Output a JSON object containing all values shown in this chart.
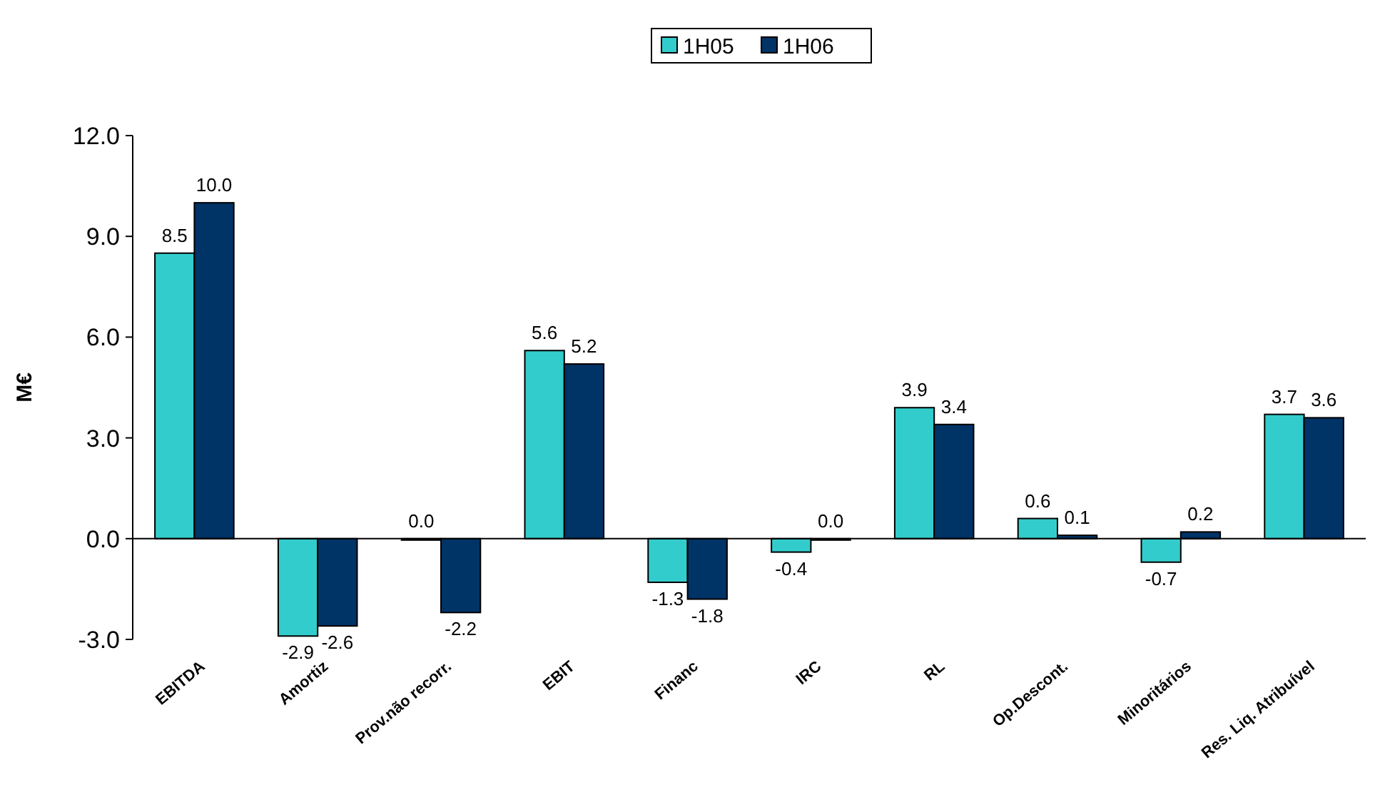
{
  "chart_data": {
    "type": "bar",
    "ylabel": "M€",
    "categories": [
      "EBITDA",
      "Amortiz",
      "Prov.não recorr.",
      "EBIT",
      "Financ",
      "IRC",
      "RL",
      "Op.Descont.",
      "Minoritários",
      "Res. Liq. Atribuível"
    ],
    "series": [
      {
        "name": "1H05",
        "color": "#33cccc",
        "values": [
          8.5,
          -2.9,
          0.0,
          5.6,
          -1.3,
          -0.4,
          3.9,
          0.6,
          -0.7,
          3.7
        ],
        "value_labels": [
          "8.5",
          "-2.9",
          "0.0",
          "5.6",
          "-1.3",
          "-0.4",
          "3.9",
          "0.6",
          "-0.7",
          "3.7"
        ]
      },
      {
        "name": "1H06",
        "color": "#003366",
        "values": [
          10.0,
          -2.6,
          -2.2,
          5.2,
          -1.8,
          0.0,
          3.4,
          0.1,
          0.2,
          3.6
        ],
        "value_labels": [
          "10.0",
          "-2.6",
          "-2.2",
          "5.2",
          "-1.8",
          "0.0",
          "3.4",
          "0.1",
          "0.2",
          "3.6"
        ]
      }
    ],
    "ylim": [
      -3,
      12
    ],
    "yticks": [
      {
        "value": -3,
        "label": "-3.0"
      },
      {
        "value": 0,
        "label": "0.0"
      },
      {
        "value": 3,
        "label": "3.0"
      },
      {
        "value": 6,
        "label": "6.0"
      },
      {
        "value": 9,
        "label": "9.0"
      },
      {
        "value": 12,
        "label": "12.0"
      }
    ],
    "legend": "top"
  }
}
